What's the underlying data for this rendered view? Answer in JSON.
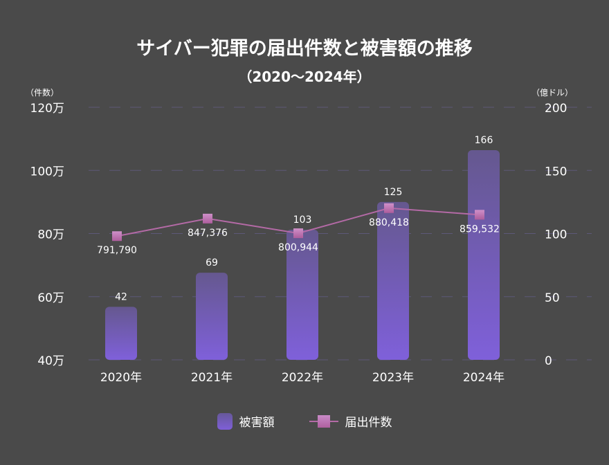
{
  "chart_data": {
    "type": "bar+line",
    "title": "サイバー犯罪の届出件数と被害額の推移",
    "subtitle": "（2020〜2024年）",
    "categories": [
      "2020年",
      "2021年",
      "2022年",
      "2023年",
      "2024年"
    ],
    "left_axis": {
      "label": "（件数）",
      "ylim": [
        400000,
        1200000
      ],
      "ticks": [
        400000,
        600000,
        800000,
        1000000,
        1200000
      ],
      "tick_labels": [
        "40万",
        "60万",
        "80万",
        "100万",
        "120万"
      ]
    },
    "right_axis": {
      "label": "（億ドル）",
      "ylim": [
        0,
        200
      ],
      "ticks": [
        0,
        50,
        100,
        150,
        200
      ],
      "tick_labels": [
        "0",
        "50",
        "100",
        "150",
        "200"
      ]
    },
    "series": [
      {
        "name": "被害額",
        "type": "bar",
        "axis": "right",
        "values": [
          42,
          69,
          103,
          125,
          166
        ],
        "labels": [
          "42",
          "69",
          "103",
          "125",
          "166"
        ],
        "color": "#7e5fd8"
      },
      {
        "name": "届出件数",
        "type": "line",
        "axis": "left",
        "values": [
          791790,
          847376,
          800944,
          880418,
          859532
        ],
        "labels": [
          "791,790",
          "847,376",
          "800,944",
          "880,418",
          "859,532"
        ],
        "color": "#b46aa6"
      }
    ],
    "grid": true,
    "legend": "bottom"
  }
}
